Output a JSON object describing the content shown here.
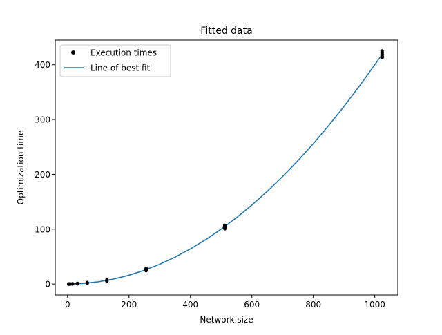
{
  "chart_data": {
    "type": "scatter",
    "title": "Fitted data",
    "xlabel": "Network size",
    "ylabel": "Optimization time",
    "xlim": [
      -40,
      1075
    ],
    "ylim": [
      -20,
      445
    ],
    "xticks": [
      0,
      200,
      400,
      600,
      800,
      1000
    ],
    "yticks": [
      0,
      100,
      200,
      300,
      400
    ],
    "xtick_labels": [
      "0",
      "200",
      "400",
      "600",
      "800",
      "1000"
    ],
    "ytick_labels": [
      "0",
      "100",
      "200",
      "300",
      "400"
    ],
    "grid": false,
    "legend_position": "top-left",
    "series": [
      {
        "name": "Execution times",
        "kind": "markers",
        "color": "#000000",
        "points": [
          [
            4,
            0
          ],
          [
            4,
            0.1
          ],
          [
            4,
            0.2
          ],
          [
            8,
            0
          ],
          [
            8,
            0.1
          ],
          [
            8,
            0.2
          ],
          [
            16,
            0.1
          ],
          [
            16,
            0.2
          ],
          [
            16,
            0.4
          ],
          [
            32,
            0.4
          ],
          [
            32,
            0.6
          ],
          [
            32,
            0.9
          ],
          [
            64,
            1.5
          ],
          [
            64,
            2.0
          ],
          [
            64,
            2.6
          ],
          [
            128,
            5.5
          ],
          [
            128,
            6.5
          ],
          [
            128,
            7.5
          ],
          [
            256,
            24.5
          ],
          [
            256,
            26.5
          ],
          [
            256,
            28.0
          ],
          [
            512,
            101
          ],
          [
            512,
            103
          ],
          [
            512,
            105
          ],
          [
            512,
            107
          ],
          [
            1024,
            413
          ],
          [
            1024,
            416
          ],
          [
            1024,
            419
          ],
          [
            1024,
            422
          ],
          [
            1024,
            425
          ]
        ]
      },
      {
        "name": "Line of best fit",
        "kind": "line",
        "color": "#1f77b4",
        "x": [
          0,
          50,
          100,
          150,
          200,
          250,
          300,
          350,
          400,
          450,
          500,
          550,
          600,
          650,
          700,
          750,
          800,
          850,
          900,
          950,
          1000,
          1024
        ],
        "y": [
          0,
          1,
          4,
          9,
          16,
          25,
          36,
          49,
          64,
          81,
          100,
          121,
          144,
          169,
          196,
          225,
          256,
          289,
          324,
          361,
          400,
          419
        ]
      }
    ]
  }
}
